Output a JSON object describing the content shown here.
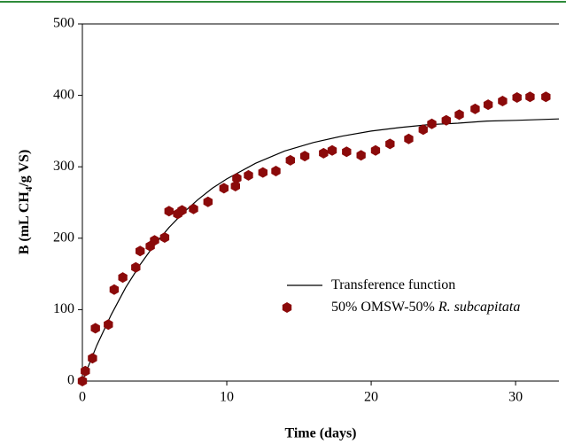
{
  "chart_data": {
    "type": "scatter",
    "x_label": "Time (days)",
    "y_label_parts": [
      "B (mL CH",
      "4",
      "/g VS)"
    ],
    "xlim": [
      0,
      33
    ],
    "xticks": [
      0,
      10,
      20,
      30
    ],
    "ylim": [
      0,
      500
    ],
    "yticks": [
      0,
      100,
      200,
      300,
      400,
      500
    ],
    "legend_position": "lower right",
    "series": [
      {
        "name": "Transference function",
        "kind": "line",
        "color": "#000000",
        "x": [
          0,
          1,
          2,
          3,
          4,
          5,
          6,
          7,
          8,
          9,
          10,
          12,
          14,
          16,
          18,
          20,
          22,
          24,
          26,
          28,
          30,
          33
        ],
        "values": [
          0,
          50,
          93,
          131,
          163,
          191,
          215,
          236,
          254,
          270,
          283,
          305,
          322,
          334,
          343,
          350,
          355,
          359,
          361,
          364,
          365,
          367
        ]
      },
      {
        "name": "50% OMSW-50% ",
        "name_italic": "R. subcapitata",
        "kind": "marker",
        "color": "#8b0a0a",
        "x": [
          0,
          0.2,
          0.7,
          0.9,
          1.8,
          2.2,
          2.8,
          3.7,
          4.0,
          4.7,
          5.0,
          5.7,
          6.0,
          6.6,
          6.9,
          7.7,
          8.7,
          9.8,
          10.6,
          10.7,
          11.5,
          12.5,
          13.4,
          14.4,
          15.4,
          16.7,
          17.3,
          18.3,
          19.3,
          20.3,
          21.3,
          22.6,
          23.6,
          24.2,
          25.2,
          26.1,
          27.2,
          28.1,
          29.1,
          30.1,
          31.0,
          32.1
        ],
        "values": [
          0,
          14,
          32,
          74,
          79,
          128,
          145,
          159,
          182,
          189,
          197,
          201,
          238,
          234,
          239,
          241,
          251,
          270,
          273,
          284,
          288,
          292,
          294,
          309,
          315,
          319,
          323,
          321,
          316,
          323,
          332,
          339,
          352,
          360,
          365,
          373,
          381,
          387,
          392,
          397,
          398,
          398
        ]
      }
    ]
  }
}
